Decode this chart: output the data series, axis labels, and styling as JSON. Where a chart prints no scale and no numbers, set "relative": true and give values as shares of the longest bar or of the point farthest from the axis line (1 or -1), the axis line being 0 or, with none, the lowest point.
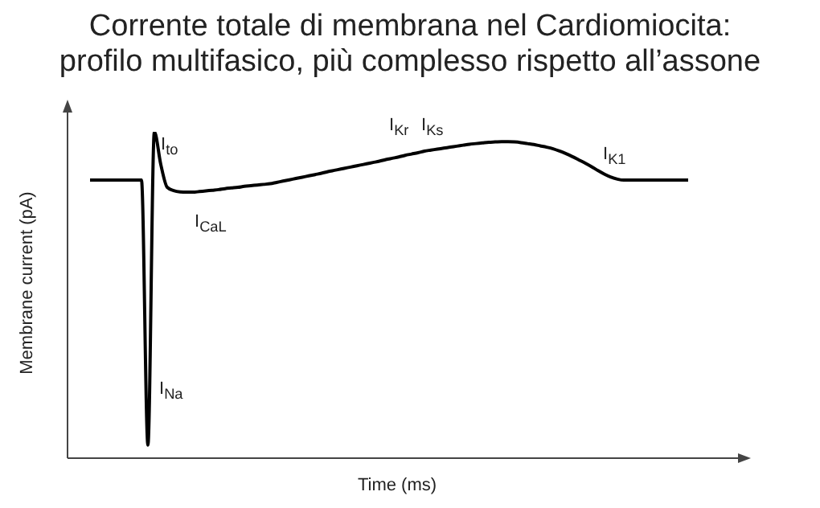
{
  "chart_data": {
    "type": "line",
    "title": "Corrente totale di membrana nel Cardiomiocita:\nprofilo multifasico, più complesso rispetto all’assone",
    "xlabel": "Time (ms)",
    "ylabel": "Membrane current (pA)",
    "relative": true,
    "annotations": [
      "I$_{to}$",
      "I$_{CaL}$",
      "I$_{Na}$",
      "I$_{Kr}$",
      "I$_{Ks}$",
      "I$_{K1}$"
    ],
    "categories": [
      null,
      null,
      null,
      null,
      null,
      null,
      null,
      null,
      null,
      null,
      null,
      null,
      null,
      null,
      null,
      null,
      null,
      null,
      null,
      null,
      null,
      null,
      null,
      null,
      null,
      null,
      null,
      null,
      null,
      null,
      null,
      null,
      null,
      null,
      null,
      null,
      null,
      null,
      null,
      null,
      null,
      null,
      null,
      null,
      null,
      null,
      null,
      null,
      null,
      null,
      null,
      null,
      null,
      null,
      null,
      null,
      null,
      null,
      null,
      null,
      null,
      null,
      null,
      null,
      null,
      null,
      null,
      null,
      null,
      null,
      null,
      null,
      null,
      null,
      null,
      null,
      null,
      null,
      null,
      null,
      null,
      null,
      null,
      null,
      null,
      null,
      null,
      null,
      null,
      null,
      null,
      null,
      null,
      null
    ],
    "series": [
      {
        "color": "#000000",
        "values": [
          0.852,
          0.852,
          0.852,
          0.852,
          0.852,
          0.852,
          0.852,
          0.852,
          0.852,
          0.04,
          1.0,
          0.9,
          0.83,
          0.82,
          0.816,
          0.815,
          0.815,
          0.817,
          0.819,
          0.821,
          0.823,
          0.826,
          0.828,
          0.83,
          0.833,
          0.835,
          0.837,
          0.839,
          0.841,
          0.845,
          0.849,
          0.853,
          0.857,
          0.861,
          0.865,
          0.869,
          0.873,
          0.878,
          0.882,
          0.886,
          0.89,
          0.894,
          0.898,
          0.902,
          0.906,
          0.91,
          0.915,
          0.919,
          0.923,
          0.928,
          0.932,
          0.936,
          0.941,
          0.944,
          0.947,
          0.95,
          0.953,
          0.956,
          0.959,
          0.962,
          0.964,
          0.966,
          0.968,
          0.969,
          0.97,
          0.97,
          0.969,
          0.967,
          0.964,
          0.961,
          0.957,
          0.953,
          0.948,
          0.941,
          0.933,
          0.924,
          0.914,
          0.904,
          0.893,
          0.881,
          0.87,
          0.861,
          0.855,
          0.852,
          0.852,
          0.852,
          0.852,
          0.852,
          0.852,
          0.852,
          0.852,
          0.852,
          0.852,
          0.852
        ]
      }
    ]
  }
}
